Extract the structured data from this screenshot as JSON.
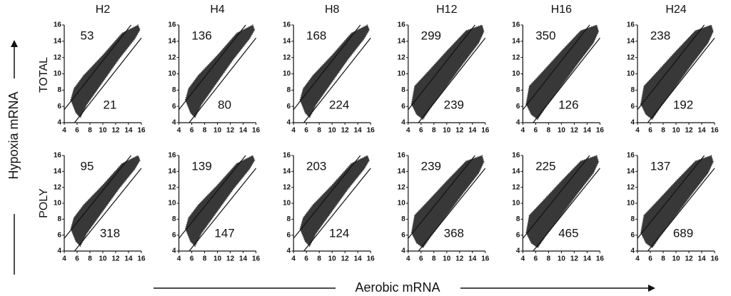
{
  "figure": {
    "y_label": "Hypoxia mRNA",
    "x_label": "Aerobic mRNA",
    "row_labels": [
      "TOTAL",
      "POLY"
    ]
  },
  "chart_data": [
    {
      "type": "scatter",
      "title": "H2",
      "up_count": 53,
      "down_count": 21,
      "xlim": [
        4,
        16
      ],
      "ylim": [
        4,
        16
      ],
      "xticks": [
        4,
        6,
        8,
        10,
        12,
        14,
        16
      ],
      "yticks": [
        4,
        6,
        8,
        10,
        12,
        14,
        16
      ],
      "cutoff_lines": [
        1.6,
        -1.6
      ],
      "cloud": {
        "x": [
          5,
          5.5,
          7,
          10,
          13,
          15.5,
          15.8,
          15,
          12.5,
          10,
          7.5,
          6.5,
          5.8
        ],
        "y": [
          6.8,
          8.2,
          9.8,
          12.3,
          15,
          16,
          15.4,
          14.3,
          11.8,
          9,
          6.2,
          4.6,
          5.2
        ]
      }
    },
    {
      "type": "scatter",
      "title": "H4",
      "up_count": 136,
      "down_count": 80,
      "xlim": [
        4,
        16
      ],
      "ylim": [
        4,
        16
      ],
      "xticks": [
        4,
        6,
        8,
        10,
        12,
        14,
        16
      ],
      "yticks": [
        4,
        6,
        8,
        10,
        12,
        14,
        16
      ],
      "cutoff_lines": [
        1.6,
        -1.6
      ],
      "cloud": {
        "x": [
          5,
          5.5,
          7,
          10,
          13,
          15.5,
          15.8,
          15,
          12.5,
          10,
          7.5,
          6.5,
          5.8
        ],
        "y": [
          6.8,
          8.2,
          9.8,
          12.3,
          15,
          16,
          15.4,
          14.3,
          11.8,
          9,
          6.2,
          4.6,
          5.2
        ]
      }
    },
    {
      "type": "scatter",
      "title": "H8",
      "up_count": 168,
      "down_count": 224,
      "xlim": [
        4,
        16
      ],
      "ylim": [
        4,
        16
      ],
      "xticks": [
        4,
        6,
        8,
        10,
        12,
        14,
        16
      ],
      "yticks": [
        4,
        6,
        8,
        10,
        12,
        14,
        16
      ],
      "cutoff_lines": [
        1.6,
        -1.6
      ],
      "cloud": {
        "x": [
          5,
          5.5,
          7,
          10,
          13,
          15.5,
          15.8,
          15,
          12.5,
          10,
          7.5,
          6.5,
          5.8
        ],
        "y": [
          6.8,
          8.2,
          9.8,
          12.3,
          15,
          16,
          15.4,
          14.3,
          11.8,
          9,
          6.2,
          4.6,
          5.2
        ]
      }
    },
    {
      "type": "scatter",
      "title": "H12",
      "up_count": 299,
      "down_count": 239,
      "xlim": [
        4,
        16
      ],
      "ylim": [
        4,
        16
      ],
      "xticks": [
        4,
        6,
        8,
        10,
        12,
        14,
        16
      ],
      "yticks": [
        4,
        6,
        8,
        10,
        12,
        14,
        16
      ],
      "cutoff_lines": [
        1.6,
        -1.6
      ],
      "cloud": {
        "x": [
          4.5,
          5,
          7,
          10,
          13,
          15.5,
          15.8,
          15,
          12.5,
          10,
          7.5,
          6.3,
          5.3
        ],
        "y": [
          6.3,
          8.5,
          10.2,
          12.8,
          15.3,
          16,
          15.2,
          13.8,
          11.2,
          8.5,
          5.8,
          4.4,
          5
        ]
      }
    },
    {
      "type": "scatter",
      "title": "H16",
      "up_count": 350,
      "down_count": 126,
      "xlim": [
        4,
        16
      ],
      "ylim": [
        4,
        16
      ],
      "xticks": [
        4,
        6,
        8,
        10,
        12,
        14,
        16
      ],
      "yticks": [
        4,
        6,
        8,
        10,
        12,
        14,
        16
      ],
      "cutoff_lines": [
        1.6,
        -1.6
      ],
      "cloud": {
        "x": [
          4.5,
          5,
          7,
          10,
          13,
          15.5,
          15.8,
          15,
          12.5,
          10,
          7.5,
          6.3,
          5.3
        ],
        "y": [
          6.3,
          8.5,
          10.2,
          12.8,
          15.3,
          16,
          15.2,
          13.8,
          11.2,
          8.5,
          5.8,
          4.4,
          5
        ]
      }
    },
    {
      "type": "scatter",
      "title": "H24",
      "up_count": 238,
      "down_count": 192,
      "xlim": [
        4,
        16
      ],
      "ylim": [
        4,
        16
      ],
      "xticks": [
        4,
        6,
        8,
        10,
        12,
        14,
        16
      ],
      "yticks": [
        4,
        6,
        8,
        10,
        12,
        14,
        16
      ],
      "cutoff_lines": [
        1.6,
        -1.6
      ],
      "cloud": {
        "x": [
          4.5,
          5,
          7,
          10,
          13,
          15.5,
          15.8,
          15,
          12.5,
          10,
          7.5,
          6.3,
          5.3
        ],
        "y": [
          6.3,
          8.5,
          10.2,
          12.8,
          15.3,
          16,
          15.2,
          13.8,
          11.2,
          8.5,
          5.8,
          4.4,
          5
        ]
      }
    },
    {
      "type": "scatter",
      "up_count": 95,
      "down_count": 318,
      "xlim": [
        4,
        16
      ],
      "ylim": [
        4,
        16
      ],
      "xticks": [
        4,
        6,
        8,
        10,
        12,
        14,
        16
      ],
      "yticks": [
        4,
        6,
        8,
        10,
        12,
        14,
        16
      ],
      "cutoff_lines": [
        1.6,
        -1.6
      ],
      "cloud": {
        "x": [
          5,
          5.5,
          7,
          10,
          13,
          15.5,
          15.8,
          15,
          12.5,
          10,
          7.5,
          6.5,
          5.8
        ],
        "y": [
          6.8,
          8.2,
          9.8,
          12.3,
          15,
          16,
          15.4,
          14.3,
          11.8,
          9,
          6.2,
          4.6,
          5.2
        ]
      }
    },
    {
      "type": "scatter",
      "up_count": 139,
      "down_count": 147,
      "xlim": [
        4,
        16
      ],
      "ylim": [
        4,
        16
      ],
      "xticks": [
        4,
        6,
        8,
        10,
        12,
        14,
        16
      ],
      "yticks": [
        4,
        6,
        8,
        10,
        12,
        14,
        16
      ],
      "cutoff_lines": [
        1.6,
        -1.6
      ],
      "cloud": {
        "x": [
          5,
          5.5,
          7,
          10,
          13,
          15.5,
          15.8,
          15,
          12.5,
          10,
          7.5,
          6.5,
          5.8
        ],
        "y": [
          6.8,
          8.2,
          9.8,
          12.3,
          15,
          16,
          15.4,
          14.3,
          11.8,
          9,
          6.2,
          4.6,
          5.2
        ]
      }
    },
    {
      "type": "scatter",
      "up_count": 203,
      "down_count": 124,
      "xlim": [
        4,
        16
      ],
      "ylim": [
        4,
        16
      ],
      "xticks": [
        4,
        6,
        8,
        10,
        12,
        14,
        16
      ],
      "yticks": [
        4,
        6,
        8,
        10,
        12,
        14,
        16
      ],
      "cutoff_lines": [
        1.6,
        -1.6
      ],
      "cloud": {
        "x": [
          5,
          5.5,
          7,
          10,
          13,
          15.5,
          15.8,
          15,
          12.5,
          10,
          7.5,
          6.5,
          5.8
        ],
        "y": [
          6.8,
          8.2,
          9.8,
          12.3,
          15,
          16,
          15.4,
          14.3,
          11.8,
          9,
          6.2,
          4.6,
          5.2
        ]
      }
    },
    {
      "type": "scatter",
      "up_count": 239,
      "down_count": 368,
      "xlim": [
        4,
        16
      ],
      "ylim": [
        4,
        16
      ],
      "xticks": [
        4,
        6,
        8,
        10,
        12,
        14,
        16
      ],
      "yticks": [
        4,
        6,
        8,
        10,
        12,
        14,
        16
      ],
      "cutoff_lines": [
        1.6,
        -1.6
      ],
      "cloud": {
        "x": [
          4.5,
          5,
          7,
          10,
          13,
          15.5,
          15.8,
          15,
          12.5,
          10,
          7.5,
          6.3,
          5.3
        ],
        "y": [
          6.3,
          8.5,
          10.2,
          12.8,
          15.3,
          16,
          15.2,
          13.8,
          11.2,
          8.5,
          5.8,
          4.4,
          5
        ]
      }
    },
    {
      "type": "scatter",
      "up_count": 225,
      "down_count": 465,
      "xlim": [
        4,
        16
      ],
      "ylim": [
        4,
        16
      ],
      "xticks": [
        4,
        6,
        8,
        10,
        12,
        14,
        16
      ],
      "yticks": [
        4,
        6,
        8,
        10,
        12,
        14,
        16
      ],
      "cutoff_lines": [
        1.6,
        -1.6
      ],
      "cloud": {
        "x": [
          4.5,
          5,
          7,
          10,
          13,
          15.5,
          15.8,
          15,
          12.5,
          10,
          7.5,
          6.3,
          5.3
        ],
        "y": [
          6.3,
          8.5,
          10.2,
          12.8,
          15.3,
          16,
          15.2,
          13.8,
          11.2,
          8.5,
          5.8,
          4.4,
          5
        ]
      }
    },
    {
      "type": "scatter",
      "up_count": 137,
      "down_count": 689,
      "xlim": [
        4,
        16
      ],
      "ylim": [
        4,
        16
      ],
      "xticks": [
        4,
        6,
        8,
        10,
        12,
        14,
        16
      ],
      "yticks": [
        4,
        6,
        8,
        10,
        12,
        14,
        16
      ],
      "cutoff_lines": [
        1.6,
        -1.6
      ],
      "cloud": {
        "x": [
          4.5,
          5,
          7,
          10,
          13,
          15.5,
          15.8,
          15,
          12.5,
          10,
          7.5,
          6.3,
          5.3
        ],
        "y": [
          6.3,
          8.5,
          10.2,
          12.8,
          15.3,
          16,
          15.2,
          13.8,
          11.2,
          8.5,
          5.8,
          4.4,
          5
        ]
      }
    }
  ]
}
